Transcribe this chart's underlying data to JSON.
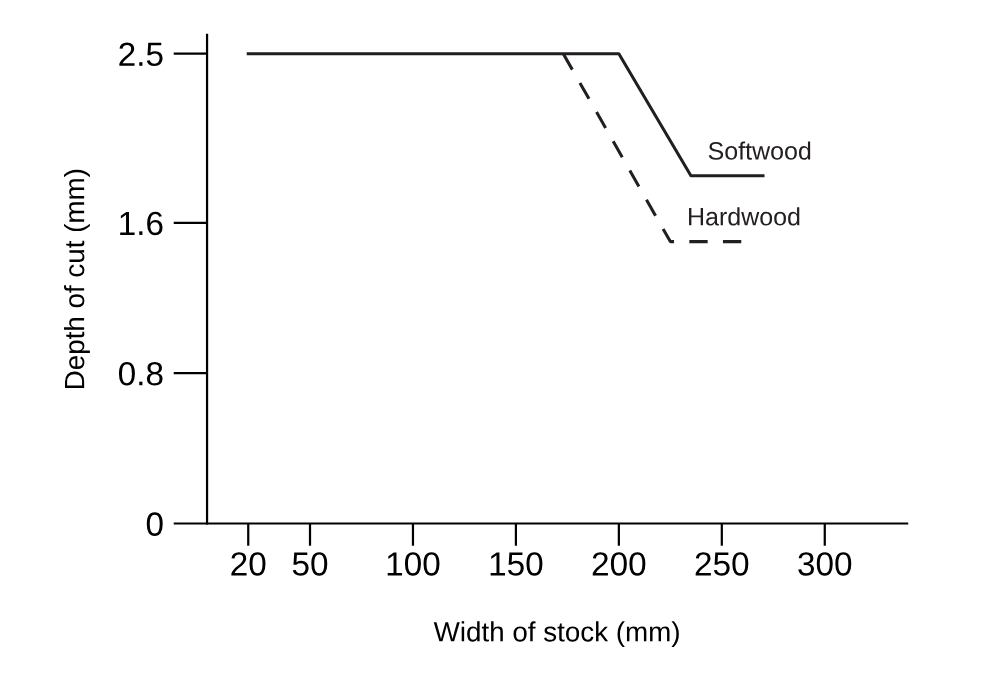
{
  "chart_data": {
    "type": "line",
    "xlabel": "Width of stock (mm)",
    "ylabel": "Depth of cut (mm)",
    "series": [
      {
        "name": "Softwood",
        "color": "#231f20",
        "line_style": "solid",
        "x": [
          20,
          200,
          235,
          270
        ],
        "values": [
          2.5,
          2.5,
          1.85,
          1.85
        ]
      },
      {
        "name": "Hardwood",
        "color": "#231f20",
        "line_style": "dashed",
        "x": [
          173,
          225,
          262
        ],
        "values": [
          2.5,
          1.5,
          1.5
        ]
      }
    ],
    "xlim": [
      0,
      340
    ],
    "xticks": [
      20,
      50,
      100,
      150,
      200,
      250,
      300
    ],
    "ylim": [
      0,
      2.6
    ],
    "yticks": [
      0,
      0.8,
      1.6,
      2.5
    ],
    "grid": false,
    "legend": false,
    "marker": "none"
  }
}
